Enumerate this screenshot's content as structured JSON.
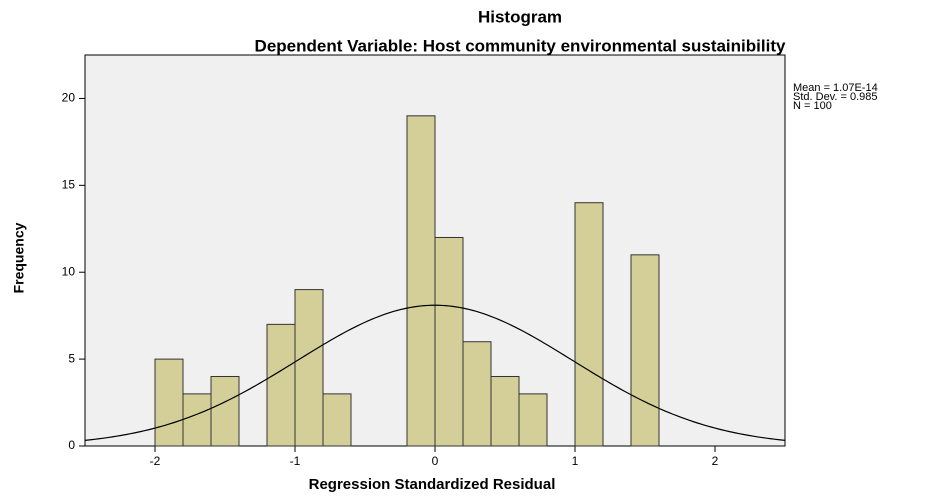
{
  "chart_data": {
    "type": "histogram",
    "title": "Histogram",
    "subtitle": "Dependent Variable: Host community environmental sustainibility",
    "x_label": "Regression Standardized Residual",
    "y_label": "Frequency",
    "annotations": [
      "Mean = 1.07E-14",
      "Std. Dev. = 0.985",
      "N = 100"
    ],
    "bins": [
      -2.0,
      -1.8,
      -1.6,
      -1.4,
      -1.2,
      -1.0,
      -0.8,
      -0.6,
      -0.4,
      -0.2,
      0,
      0.2,
      0.4,
      0.6,
      0.8,
      1.0,
      1.2,
      1.4,
      1.6
    ],
    "values": [
      5,
      3,
      4,
      0,
      7,
      9,
      3,
      0,
      0,
      19,
      12,
      6,
      4,
      3,
      0,
      14,
      0,
      11
    ],
    "color": "#d4cf98",
    "normal_curve": {
      "mean": 1.07e-14,
      "sd": 0.985,
      "n": 100
    },
    "xlim": [
      -2.5,
      2.5
    ],
    "ylim": [
      0,
      22.5
    ],
    "xticks": [
      -2,
      -1,
      0,
      1,
      2
    ],
    "yticks": [
      0,
      5,
      10,
      15,
      20
    ]
  }
}
